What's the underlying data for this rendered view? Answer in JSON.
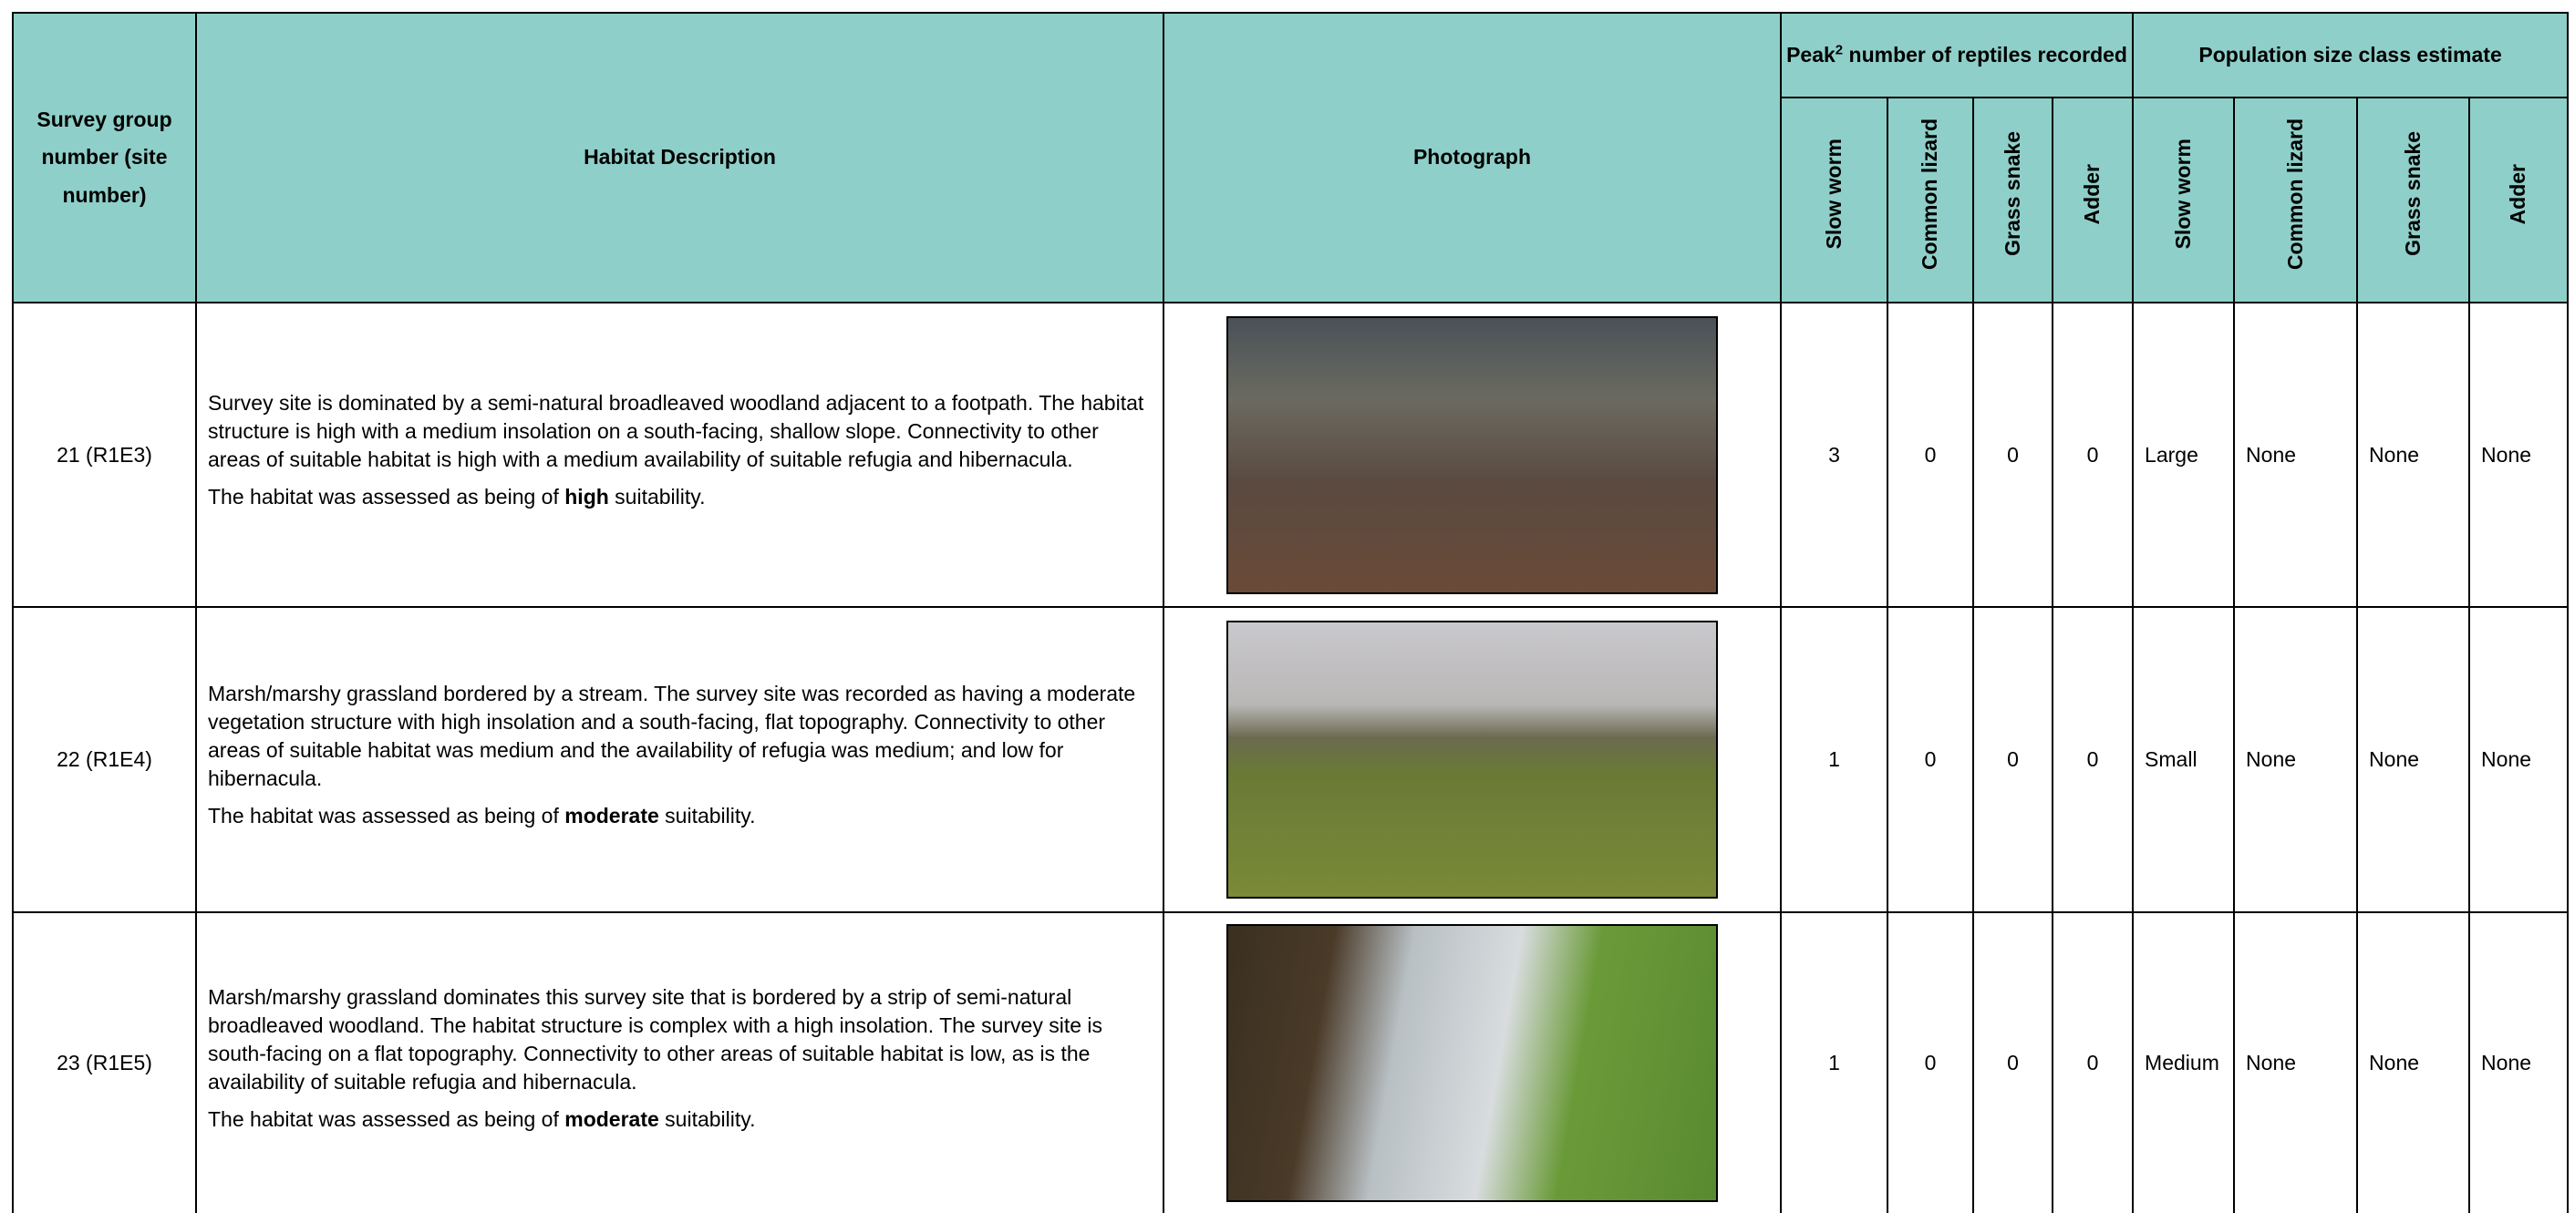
{
  "table": {
    "headers": {
      "survey_group": "Survey group number (site number)",
      "habitat": "Habitat Description",
      "photograph": "Photograph",
      "peak": {
        "before": "Peak",
        "sup": "2",
        "after": " number of reptiles recorded"
      },
      "population": "Population size class estimate",
      "species": [
        "Slow worm",
        "Common lizard",
        "Grass snake",
        "Adder"
      ]
    },
    "rows": [
      {
        "site": "21 (R1E3)",
        "description": "Survey site is dominated by a semi-natural broadleaved woodland adjacent to a footpath.  The habitat structure is high with a medium insolation on a south-facing, shallow slope.  Connectivity to other areas of suitable habitat is high with a medium availability of suitable refugia and hibernacula.",
        "assessment": {
          "before": "The habitat was assessed as being of ",
          "emphasis": "high",
          "after": " suitability."
        },
        "peak": [
          3,
          0,
          0,
          0
        ],
        "population": [
          "Large",
          "None",
          "None",
          "None"
        ]
      },
      {
        "site": "22 (R1E4)",
        "description": "Marsh/marshy grassland bordered by a stream.  The survey site was recorded as having a moderate vegetation structure with high insolation and a south-facing, flat topography.  Connectivity to other areas of suitable habitat was medium and the availability of refugia was medium; and low for hibernacula.",
        "assessment": {
          "before": "The habitat was assessed as being of ",
          "emphasis": "moderate",
          "after": " suitability."
        },
        "peak": [
          1,
          0,
          0,
          0
        ],
        "population": [
          "Small",
          "None",
          "None",
          "None"
        ]
      },
      {
        "site": "23 (R1E5)",
        "description": "Marsh/marshy grassland dominates this survey site that is bordered by a strip of semi-natural broadleaved woodland.  The habitat structure is complex with a high insolation.  The survey site is south-facing on a flat topography.  Connectivity to other areas of suitable habitat is low, as is the availability of suitable refugia and hibernacula.",
        "assessment": {
          "before": "The habitat was assessed as being of ",
          "emphasis": "moderate",
          "after": " suitability."
        },
        "peak": [
          1,
          0,
          0,
          0
        ],
        "population": [
          "Medium",
          "None",
          "None",
          "None"
        ]
      }
    ]
  }
}
